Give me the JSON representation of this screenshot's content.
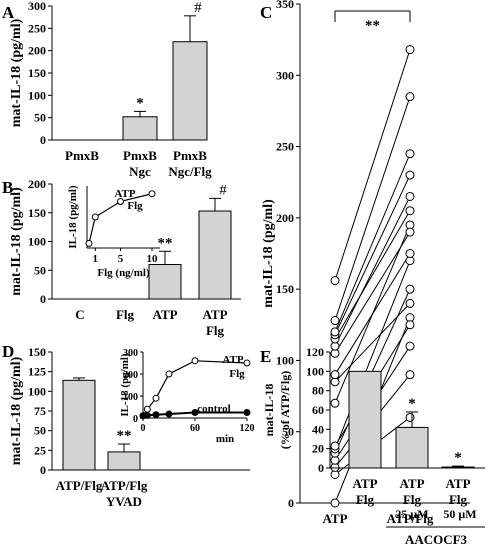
{
  "chart_data": [
    {
      "panel_letter": "A",
      "type": "bar",
      "ylabel": "mat-IL-18 (pg/ml)",
      "ylim": [
        0,
        300
      ],
      "yticks": [
        "0",
        "50",
        "100",
        "150",
        "200",
        "250",
        "300"
      ],
      "categories": [
        [
          "PmxB"
        ],
        [
          "PmxB",
          "Ngc"
        ],
        [
          "PmxB",
          "Ngc/Flg"
        ]
      ],
      "values": [
        0,
        52,
        220
      ],
      "errors": [
        0,
        12,
        58
      ],
      "significance": [
        "",
        "*",
        "#"
      ]
    },
    {
      "panel_letter": "B",
      "type": "bar",
      "ylabel": "mat-IL-18 (pg/ml)",
      "ylim": [
        0,
        200
      ],
      "yticks": [
        "0",
        "50",
        "100",
        "150",
        "200"
      ],
      "categories": [
        [
          "C"
        ],
        [
          "Flg"
        ],
        [
          "ATP"
        ],
        [
          "ATP",
          "Flg"
        ]
      ],
      "values": [
        0,
        0,
        60,
        153
      ],
      "errors": [
        0,
        0,
        23,
        22
      ],
      "significance": [
        "",
        "",
        "**",
        "#"
      ],
      "inset": {
        "type": "line",
        "ylabel": "IL-18 (pg/ml)",
        "xlabel": "Flg (ng/ml)",
        "xtick_labels": [
          "1",
          "5",
          "10"
        ],
        "series_label": [
          "ATP",
          "Flg"
        ],
        "x": [
          0,
          1,
          5,
          10
        ],
        "y": [
          15,
          100,
          150,
          175
        ]
      }
    },
    {
      "panel_letter": "C",
      "type": "scatter",
      "ylabel": "mat-IL-18 (pg/ml)",
      "ylim": [
        0,
        350
      ],
      "yticks": [
        "0",
        "50",
        "100",
        "150",
        "200",
        "250",
        "300",
        "350"
      ],
      "categories": [
        "ATP",
        "ATP/Flg"
      ],
      "significance": "**",
      "pairs": [
        [
          0,
          130
        ],
        [
          20,
          60
        ],
        [
          25,
          90
        ],
        [
          30,
          110
        ],
        [
          35,
          150
        ],
        [
          38,
          170
        ],
        [
          40,
          125
        ],
        [
          70,
          195
        ],
        [
          85,
          140
        ],
        [
          90,
          175
        ],
        [
          105,
          190
        ],
        [
          110,
          215
        ],
        [
          115,
          205
        ],
        [
          118,
          230
        ],
        [
          120,
          245
        ],
        [
          128,
          285
        ],
        [
          156,
          318
        ]
      ]
    },
    {
      "panel_letter": "D",
      "type": "bar",
      "ylabel": "mat-IL-18 (pg/ml)",
      "ylim": [
        0,
        150
      ],
      "yticks": [
        "0",
        "25",
        "50",
        "75",
        "100",
        "125",
        "150"
      ],
      "categories": [
        [
          "ATP/Flg"
        ],
        [
          "ATP/Flg",
          "YVAD"
        ]
      ],
      "values": [
        114,
        23
      ],
      "errors": [
        3,
        10
      ],
      "significance": [
        "",
        "**"
      ],
      "inset": {
        "type": "line",
        "ylabel": "IL-18 (pg/ml)",
        "xlabel": "min",
        "xlim": [
          0,
          120
        ],
        "ylim": [
          0,
          300
        ],
        "xticks": [
          "0",
          "60",
          "120"
        ],
        "yticks": [
          "0",
          "100",
          "200",
          "300"
        ],
        "series": [
          {
            "name": [
              "ATP",
              "Flg"
            ],
            "x": [
              0,
              5,
              15,
              30,
              60,
              120
            ],
            "y": [
              10,
              40,
              90,
              200,
              260,
              250
            ]
          },
          {
            "name": [
              "control"
            ],
            "x": [
              0,
              5,
              15,
              30,
              60,
              120
            ],
            "y": [
              10,
              12,
              15,
              18,
              25,
              25
            ]
          }
        ]
      }
    },
    {
      "panel_letter": "E",
      "type": "bar",
      "ylabel": [
        "mat-IL-18",
        "(% of  ATP/Flg)"
      ],
      "ylim": [
        0,
        120
      ],
      "yticks": [
        "0",
        "20",
        "40",
        "60",
        "80",
        "100",
        "120"
      ],
      "categories": [
        [
          "ATP",
          "Flg"
        ],
        [
          "ATP",
          "Flg"
        ],
        [
          "ATP",
          "Flg"
        ]
      ],
      "values": [
        100,
        42,
        1
      ],
      "errors": [
        0,
        16,
        1
      ],
      "significance": [
        "",
        "*",
        "*"
      ],
      "doses": [
        "25 μM",
        "50 μM"
      ],
      "treatment": "AACOCF3"
    }
  ]
}
